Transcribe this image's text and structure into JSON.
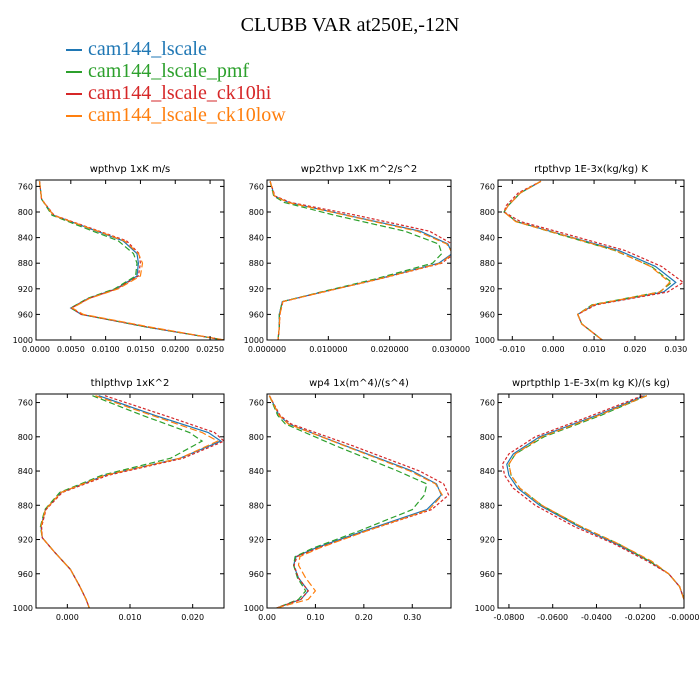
{
  "figure": {
    "title": "CLUBB VAR at250E,-12N",
    "legend": [
      {
        "label": "cam144_lscale",
        "color": "#1f77b4"
      },
      {
        "label": "cam144_lscale_pmf",
        "color": "#2ca02c"
      },
      {
        "label": "cam144_lscale_ck10hi",
        "color": "#d62728"
      },
      {
        "label": "cam144_lscale_ck10low",
        "color": "#ff7f0e"
      }
    ]
  },
  "chart_data": [
    {
      "type": "line",
      "title": "wpthvp  1xK m/s",
      "xlim": [
        0,
        0.027
      ],
      "ylim": [
        1000,
        750
      ],
      "xticks": [
        0,
        0.005,
        0.01,
        0.015,
        0.02,
        0.025
      ],
      "xtick_labels": [
        "0.0000",
        "0.0050",
        "0.0100",
        "0.0150",
        "0.0200",
        "0.0250"
      ],
      "yticks": [
        760,
        800,
        840,
        880,
        920,
        960,
        1000
      ],
      "ytick_labels": [
        "760",
        "800",
        "840",
        "880",
        "920",
        "960",
        "1000"
      ],
      "y": [
        752,
        780,
        805,
        825,
        845,
        865,
        880,
        900,
        920,
        935,
        950,
        960,
        980,
        1000
      ],
      "series": [
        {
          "name": "cam144_lscale",
          "color": "#1f77b4",
          "x": [
            0.0005,
            0.0008,
            0.0025,
            0.0075,
            0.0125,
            0.0145,
            0.0147,
            0.0145,
            0.0115,
            0.0075,
            0.005,
            0.0065,
            0.016,
            0.027
          ]
        },
        {
          "name": "cam144_lscale_pmf",
          "color": "#2ca02c",
          "x": [
            0.0005,
            0.0008,
            0.0023,
            0.007,
            0.0118,
            0.014,
            0.0145,
            0.0143,
            0.0113,
            0.0074,
            0.005,
            0.0066,
            0.016,
            0.027
          ]
        },
        {
          "name": "cam144_lscale_ck10hi",
          "color": "#d62728",
          "x": [
            0.0005,
            0.0008,
            0.0026,
            0.0078,
            0.013,
            0.0148,
            0.015,
            0.0147,
            0.0116,
            0.0076,
            0.0051,
            0.0065,
            0.0162,
            0.027
          ]
        },
        {
          "name": "cam144_lscale_ck10low",
          "color": "#ff7f0e",
          "x": [
            0.0005,
            0.0008,
            0.0025,
            0.0076,
            0.0127,
            0.0147,
            0.0153,
            0.015,
            0.0118,
            0.0077,
            0.0052,
            0.0068,
            0.0165,
            0.027
          ]
        }
      ]
    },
    {
      "type": "line",
      "title": "wp2thvp  1xK m^2/s^2",
      "xlim": [
        0,
        0.03
      ],
      "ylim": [
        1000,
        750
      ],
      "xticks": [
        0,
        0.01,
        0.02,
        0.03
      ],
      "xtick_labels": [
        "0.000000",
        "0.010000",
        "0.020000",
        "0.030000"
      ],
      "yticks": [
        760,
        800,
        840,
        880,
        920,
        960,
        1000
      ],
      "ytick_labels": [
        "760",
        "800",
        "840",
        "880",
        "920",
        "960",
        "1000"
      ],
      "y": [
        752,
        775,
        785,
        805,
        830,
        850,
        865,
        880,
        905,
        925,
        940,
        960,
        980,
        1000
      ],
      "series": [
        {
          "name": "cam144_lscale",
          "color": "#1f77b4",
          "x": [
            0.0005,
            0.0012,
            0.0035,
            0.013,
            0.025,
            0.0295,
            0.0302,
            0.028,
            0.018,
            0.009,
            0.0025,
            0.002,
            0.002,
            0.0018
          ]
        },
        {
          "name": "cam144_lscale_pmf",
          "color": "#2ca02c",
          "x": [
            0.0005,
            0.0011,
            0.0028,
            0.011,
            0.0225,
            0.028,
            0.0285,
            0.027,
            0.0175,
            0.0088,
            0.0025,
            0.002,
            0.002,
            0.0018
          ]
        },
        {
          "name": "cam144_lscale_ck10hi",
          "color": "#d62728",
          "x": [
            0.0005,
            0.0013,
            0.0038,
            0.0145,
            0.0265,
            0.0302,
            0.0305,
            0.0285,
            0.0182,
            0.0092,
            0.0026,
            0.0021,
            0.002,
            0.0018
          ]
        },
        {
          "name": "cam144_lscale_ck10low",
          "color": "#ff7f0e",
          "x": [
            0.0005,
            0.0012,
            0.0034,
            0.0128,
            0.0245,
            0.0293,
            0.0303,
            0.0283,
            0.0181,
            0.0091,
            0.0026,
            0.0021,
            0.002,
            0.0018
          ]
        }
      ]
    },
    {
      "type": "line",
      "title": "rtpthvp  1E-3x(kg/kg) K",
      "xlim": [
        -0.0135,
        0.032
      ],
      "ylim": [
        1000,
        750
      ],
      "xticks": [
        -0.01,
        0,
        0.01,
        0.02,
        0.03
      ],
      "xtick_labels": [
        "-0.010",
        "0.000",
        "0.010",
        "0.020",
        "0.030"
      ],
      "yticks": [
        760,
        800,
        840,
        880,
        920,
        960,
        1000
      ],
      "ytick_labels": [
        "760",
        "800",
        "840",
        "880",
        "920",
        "960",
        "1000"
      ],
      "y": [
        752,
        770,
        790,
        800,
        815,
        835,
        860,
        885,
        910,
        925,
        945,
        960,
        975,
        990,
        1000
      ],
      "series": [
        {
          "name": "cam144_lscale",
          "color": "#1f77b4",
          "x": [
            -0.003,
            -0.008,
            -0.011,
            -0.012,
            -0.009,
            0.002,
            0.016,
            0.025,
            0.03,
            0.027,
            0.01,
            0.006,
            0.007,
            0.01,
            0.012
          ]
        },
        {
          "name": "cam144_lscale_pmf",
          "color": "#2ca02c",
          "x": [
            -0.003,
            -0.008,
            -0.011,
            -0.012,
            -0.009,
            0.0015,
            0.015,
            0.024,
            0.029,
            0.026,
            0.0095,
            0.006,
            0.007,
            0.01,
            0.012
          ]
        },
        {
          "name": "cam144_lscale_ck10hi",
          "color": "#d62728",
          "x": [
            -0.003,
            -0.0085,
            -0.0115,
            -0.012,
            -0.008,
            0.0035,
            0.0175,
            0.0265,
            0.0318,
            0.028,
            0.0105,
            0.006,
            0.007,
            0.01,
            0.012
          ]
        },
        {
          "name": "cam144_lscale_ck10low",
          "color": "#ff7f0e",
          "x": [
            -0.003,
            -0.008,
            -0.011,
            -0.012,
            -0.0092,
            0.0018,
            0.0152,
            0.0238,
            0.0285,
            0.0262,
            0.0098,
            0.006,
            0.007,
            0.01,
            0.012
          ]
        }
      ]
    },
    {
      "type": "line",
      "title": "thlpthvp  1xK^2",
      "xlim": [
        -0.005,
        0.025
      ],
      "ylim": [
        1000,
        750
      ],
      "xticks": [
        0,
        0.01,
        0.02
      ],
      "xtick_labels": [
        "0.000",
        "0.010",
        "0.020"
      ],
      "yticks": [
        760,
        800,
        840,
        880,
        920,
        960,
        1000
      ],
      "ytick_labels": [
        "760",
        "800",
        "840",
        "880",
        "920",
        "960",
        "1000"
      ],
      "y": [
        752,
        775,
        795,
        805,
        825,
        845,
        865,
        885,
        905,
        918,
        935,
        955,
        975,
        990,
        1000
      ],
      "series": [
        {
          "name": "cam144_lscale",
          "color": "#1f77b4",
          "x": [
            0.005,
            0.014,
            0.0225,
            0.0245,
            0.018,
            0.006,
            -0.001,
            -0.0035,
            -0.0042,
            -0.004,
            -0.002,
            0.0005,
            0.002,
            0.003,
            0.0035
          ]
        },
        {
          "name": "cam144_lscale_pmf",
          "color": "#2ca02c",
          "x": [
            0.004,
            0.012,
            0.0195,
            0.0215,
            0.0165,
            0.0055,
            -0.0012,
            -0.0036,
            -0.0043,
            -0.004,
            -0.002,
            0.0005,
            0.002,
            0.003,
            0.0035
          ]
        },
        {
          "name": "cam144_lscale_ck10hi",
          "color": "#d62728",
          "x": [
            0.006,
            0.0155,
            0.0235,
            0.025,
            0.0185,
            0.0065,
            -0.0008,
            -0.0034,
            -0.0041,
            -0.004,
            -0.002,
            0.0005,
            0.002,
            0.003,
            0.0035
          ]
        },
        {
          "name": "cam144_lscale_ck10low",
          "color": "#ff7f0e",
          "x": [
            0.0045,
            0.0135,
            0.0215,
            0.024,
            0.018,
            0.006,
            -0.001,
            -0.0035,
            -0.0042,
            -0.004,
            -0.002,
            0.0005,
            0.002,
            0.003,
            0.0035
          ]
        }
      ]
    },
    {
      "type": "line",
      "title": "wp4  1x(m^4)/(s^4)",
      "xlim": [
        0,
        0.38
      ],
      "ylim": [
        1000,
        750
      ],
      "xticks": [
        0,
        0.1,
        0.2,
        0.3
      ],
      "xtick_labels": [
        "0.00",
        "0.10",
        "0.20",
        "0.30"
      ],
      "yticks": [
        760,
        800,
        840,
        880,
        920,
        960,
        1000
      ],
      "ytick_labels": [
        "760",
        "800",
        "840",
        "880",
        "920",
        "960",
        "1000"
      ],
      "y": [
        752,
        775,
        785,
        810,
        840,
        855,
        868,
        885,
        910,
        930,
        940,
        950,
        965,
        980,
        990,
        1000
      ],
      "series": [
        {
          "name": "cam144_lscale",
          "color": "#1f77b4",
          "x": [
            0.005,
            0.025,
            0.045,
            0.16,
            0.3,
            0.35,
            0.36,
            0.33,
            0.2,
            0.1,
            0.06,
            0.055,
            0.065,
            0.085,
            0.07,
            0.02
          ]
        },
        {
          "name": "cam144_lscale_pmf",
          "color": "#2ca02c",
          "x": [
            0.005,
            0.022,
            0.038,
            0.14,
            0.27,
            0.33,
            0.325,
            0.3,
            0.19,
            0.095,
            0.058,
            0.055,
            0.063,
            0.08,
            0.065,
            0.02
          ]
        },
        {
          "name": "cam144_lscale_ck10hi",
          "color": "#d62728",
          "x": [
            0.005,
            0.027,
            0.05,
            0.175,
            0.315,
            0.365,
            0.375,
            0.34,
            0.205,
            0.105,
            0.062,
            0.056,
            0.065,
            0.085,
            0.07,
            0.02
          ]
        },
        {
          "name": "cam144_lscale_ck10low",
          "color": "#ff7f0e",
          "x": [
            0.005,
            0.025,
            0.044,
            0.158,
            0.295,
            0.348,
            0.362,
            0.335,
            0.205,
            0.108,
            0.068,
            0.065,
            0.08,
            0.1,
            0.085,
            0.02
          ]
        }
      ]
    },
    {
      "type": "line",
      "title": "wprtpthlp  1-E-3x(m kg K)/(s kg)",
      "xlim": [
        -0.085,
        0
      ],
      "ylim": [
        1000,
        750
      ],
      "xticks": [
        -0.08,
        -0.06,
        -0.04,
        -0.02,
        0
      ],
      "xtick_labels": [
        "-0.0800",
        "-0.0600",
        "-0.0400",
        "-0.0200",
        "-0.0000"
      ],
      "yticks": [
        760,
        800,
        840,
        880,
        920,
        960,
        1000
      ],
      "ytick_labels": [
        "760",
        "800",
        "840",
        "880",
        "920",
        "960",
        "1000"
      ],
      "y": [
        752,
        775,
        800,
        820,
        832,
        845,
        860,
        880,
        905,
        925,
        945,
        960,
        975,
        990
      ],
      "series": [
        {
          "name": "cam144_lscale",
          "color": "#1f77b4",
          "x": [
            -0.018,
            -0.04,
            -0.066,
            -0.078,
            -0.081,
            -0.08,
            -0.076,
            -0.066,
            -0.048,
            -0.031,
            -0.016,
            -0.007,
            -0.002,
            0
          ]
        },
        {
          "name": "cam144_lscale_pmf",
          "color": "#2ca02c",
          "x": [
            -0.017,
            -0.038,
            -0.064,
            -0.077,
            -0.08,
            -0.079,
            -0.075,
            -0.065,
            -0.047,
            -0.03,
            -0.016,
            -0.007,
            -0.002,
            0
          ]
        },
        {
          "name": "cam144_lscale_ck10hi",
          "color": "#d62728",
          "x": [
            -0.019,
            -0.042,
            -0.068,
            -0.08,
            -0.083,
            -0.082,
            -0.078,
            -0.068,
            -0.05,
            -0.032,
            -0.017,
            -0.007,
            -0.002,
            0
          ]
        },
        {
          "name": "cam144_lscale_ck10low",
          "color": "#ff7f0e",
          "x": [
            -0.017,
            -0.039,
            -0.065,
            -0.077,
            -0.08,
            -0.079,
            -0.075,
            -0.065,
            -0.047,
            -0.03,
            -0.015,
            -0.007,
            -0.002,
            0
          ]
        }
      ]
    }
  ]
}
